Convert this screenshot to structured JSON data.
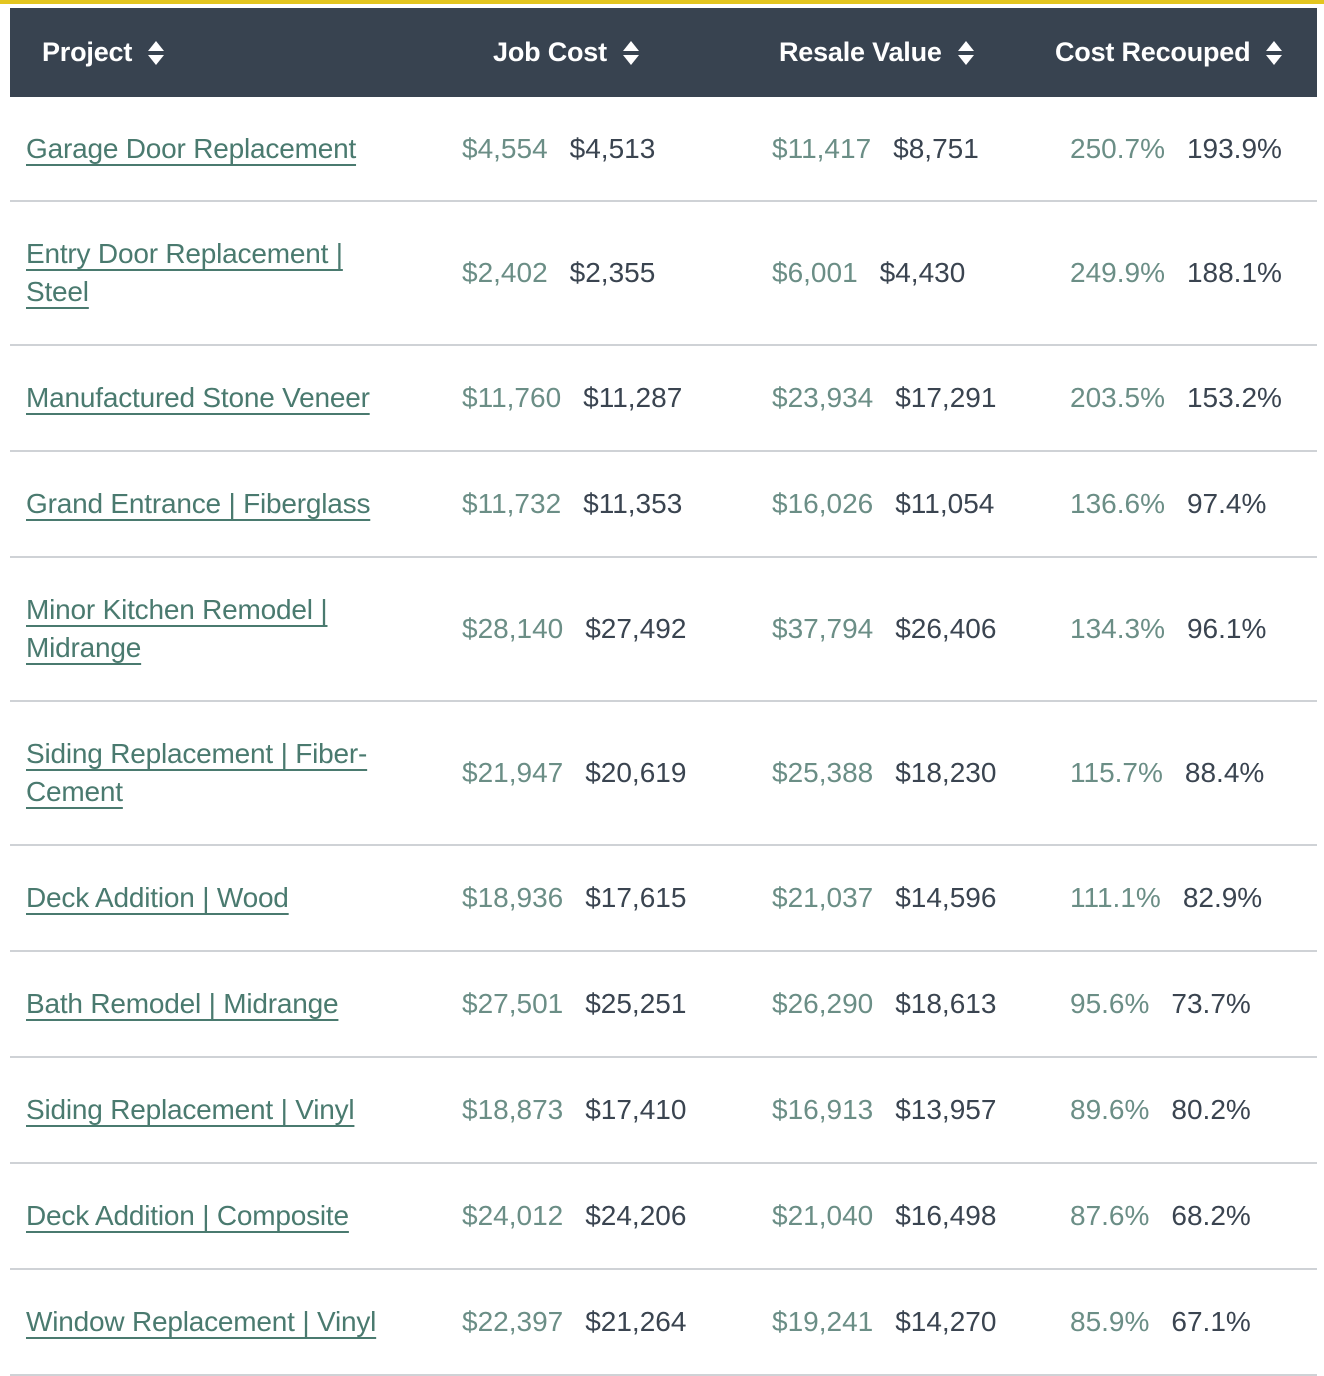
{
  "header": {
    "project": "Project",
    "job_cost": "Job Cost",
    "resale_value": "Resale Value",
    "cost_recouped": "Cost Recouped"
  },
  "rows": [
    {
      "project": "Garage Door Replacement",
      "job_cost_a": "$4,554",
      "job_cost_b": "$4,513",
      "resale_a": "$11,417",
      "resale_b": "$8,751",
      "recoup_a": "250.7%",
      "recoup_b": "193.9%"
    },
    {
      "project": "Entry Door Replacement | Steel",
      "job_cost_a": "$2,402",
      "job_cost_b": "$2,355",
      "resale_a": "$6,001",
      "resale_b": "$4,430",
      "recoup_a": "249.9%",
      "recoup_b": "188.1%"
    },
    {
      "project": "Manufactured Stone Veneer",
      "job_cost_a": "$11,760",
      "job_cost_b": "$11,287",
      "resale_a": "$23,934",
      "resale_b": "$17,291",
      "recoup_a": "203.5%",
      "recoup_b": "153.2%"
    },
    {
      "project": "Grand Entrance | Fiberglass",
      "job_cost_a": "$11,732",
      "job_cost_b": "$11,353",
      "resale_a": "$16,026",
      "resale_b": "$11,054",
      "recoup_a": "136.6%",
      "recoup_b": "97.4%"
    },
    {
      "project": "Minor Kitchen Remodel | Midrange",
      "job_cost_a": "$28,140",
      "job_cost_b": "$27,492",
      "resale_a": "$37,794",
      "resale_b": "$26,406",
      "recoup_a": "134.3%",
      "recoup_b": "96.1%"
    },
    {
      "project": "Siding Replacement | Fiber-Cement",
      "job_cost_a": "$21,947",
      "job_cost_b": "$20,619",
      "resale_a": "$25,388",
      "resale_b": "$18,230",
      "recoup_a": "115.7%",
      "recoup_b": "88.4%"
    },
    {
      "project": "Deck Addition | Wood",
      "job_cost_a": "$18,936",
      "job_cost_b": "$17,615",
      "resale_a": "$21,037",
      "resale_b": "$14,596",
      "recoup_a": "111.1%",
      "recoup_b": "82.9%"
    },
    {
      "project": "Bath Remodel | Midrange",
      "job_cost_a": "$27,501",
      "job_cost_b": "$25,251",
      "resale_a": "$26,290",
      "resale_b": "$18,613",
      "recoup_a": "95.6%",
      "recoup_b": "73.7%"
    },
    {
      "project": "Siding Replacement | Vinyl",
      "job_cost_a": "$18,873",
      "job_cost_b": "$17,410",
      "resale_a": "$16,913",
      "resale_b": "$13,957",
      "recoup_a": "89.6%",
      "recoup_b": "80.2%"
    },
    {
      "project": "Deck Addition | Composite",
      "job_cost_a": "$24,012",
      "job_cost_b": "$24,206",
      "resale_a": "$21,040",
      "resale_b": "$16,498",
      "recoup_a": "87.6%",
      "recoup_b": "68.2%"
    },
    {
      "project": "Window Replacement | Vinyl",
      "job_cost_a": "$22,397",
      "job_cost_b": "$21,264",
      "resale_a": "$19,241",
      "resale_b": "$14,270",
      "recoup_a": "85.9%",
      "recoup_b": "67.1%"
    }
  ],
  "colors": {
    "header_bg": "#384350",
    "accent_bar": "#e3c51f",
    "link": "#4a7a6f",
    "value_primary": "#6b8e86",
    "value_secondary": "#3a4450",
    "divider": "#cfd2d6"
  }
}
